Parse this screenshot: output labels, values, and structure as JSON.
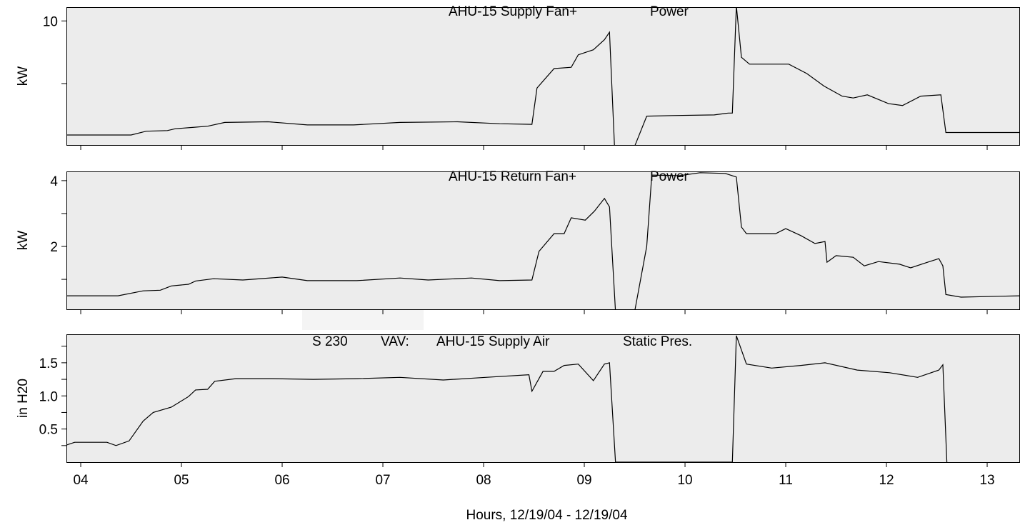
{
  "chart_data": [
    {
      "type": "line",
      "title_parts": [
        "AHU-15 Supply Fan+",
        "Power"
      ],
      "ylabel": "kW",
      "color": "#000000",
      "xlim": [
        3.858,
        13.326
      ],
      "ylim": [
        0.1,
        11.1
      ],
      "yticks": [
        10
      ],
      "minor_yticks": [
        5
      ],
      "xtick_marks": [
        4,
        5,
        6,
        7,
        8,
        9,
        10,
        11,
        12,
        13
      ],
      "x": [
        3.86,
        4.5,
        4.65,
        4.86,
        4.94,
        5.11,
        5.26,
        5.43,
        5.86,
        6.25,
        6.71,
        7.17,
        7.74,
        8.16,
        8.48,
        8.53,
        8.7,
        8.87,
        8.94,
        9.09,
        9.2,
        9.25,
        9.3,
        9.5,
        9.62,
        9.87,
        10.29,
        10.43,
        10.47,
        10.51,
        10.56,
        10.64,
        11.03,
        11.21,
        11.38,
        11.56,
        11.67,
        11.81,
        12.02,
        12.16,
        12.34,
        12.54,
        12.59,
        13.33
      ],
      "values": [
        0.9,
        0.9,
        1.2,
        1.25,
        1.4,
        1.5,
        1.6,
        1.9,
        1.95,
        1.7,
        1.7,
        1.9,
        1.95,
        1.8,
        1.75,
        4.65,
        6.2,
        6.3,
        7.3,
        7.7,
        8.5,
        9.1,
        0,
        0,
        2.4,
        2.45,
        2.5,
        2.65,
        2.65,
        11.2,
        7.1,
        6.55,
        6.55,
        5.8,
        4.8,
        4.0,
        3.85,
        4.1,
        3.4,
        3.25,
        4.0,
        4.1,
        1.1,
        1.1
      ]
    },
    {
      "type": "line",
      "title_parts": [
        "AHU-15 Return Fan+",
        "Power"
      ],
      "ylabel": "kW",
      "color": "#000000",
      "xlim": [
        3.858,
        13.326
      ],
      "ylim": [
        0.09,
        4.28
      ],
      "yticks": [
        2,
        4
      ],
      "minor_yticks": [
        1,
        3
      ],
      "xtick_marks": [
        4,
        5,
        6,
        7,
        8,
        9,
        10,
        11,
        12,
        13
      ],
      "x": [
        3.86,
        4.37,
        4.62,
        4.79,
        4.9,
        5.07,
        5.14,
        5.32,
        5.61,
        6.0,
        6.25,
        6.74,
        7.17,
        7.45,
        7.88,
        8.16,
        8.48,
        8.55,
        8.7,
        8.8,
        8.87,
        9.01,
        9.1,
        9.2,
        9.25,
        9.31,
        9.5,
        9.62,
        9.67,
        9.94,
        10.15,
        10.4,
        10.51,
        10.56,
        10.61,
        10.9,
        11.0,
        11.15,
        11.29,
        11.39,
        11.41,
        11.5,
        11.67,
        11.78,
        11.92,
        12.13,
        12.24,
        12.41,
        12.52,
        12.56,
        12.59,
        12.74,
        13.33
      ],
      "values": [
        0.5,
        0.5,
        0.65,
        0.67,
        0.8,
        0.85,
        0.95,
        1.02,
        0.98,
        1.07,
        0.96,
        0.96,
        1.04,
        0.98,
        1.04,
        0.96,
        0.98,
        1.85,
        2.39,
        2.39,
        2.87,
        2.8,
        3.07,
        3.46,
        3.2,
        0.02,
        0.02,
        2.0,
        4.17,
        4.15,
        4.24,
        4.22,
        4.11,
        2.59,
        2.39,
        2.39,
        2.54,
        2.33,
        2.09,
        2.15,
        1.52,
        1.72,
        1.67,
        1.41,
        1.54,
        1.46,
        1.35,
        1.52,
        1.63,
        1.41,
        0.54,
        0.46,
        0.5
      ]
    },
    {
      "type": "line",
      "title_parts": [
        "S 230",
        "VAV:",
        "AHU-15 Supply Air",
        "Static Pres."
      ],
      "ylabel": "in H20",
      "xlabel": "Hours, 12/19/04 - 12/19/04",
      "color": "#000000",
      "xlim": [
        3.858,
        13.326
      ],
      "ylim": [
        0,
        1.93
      ],
      "yticks": [
        {
          "value": 0.5,
          "label": "0.5"
        },
        {
          "value": 1,
          "label": "1.0"
        },
        {
          "value": 1.5,
          "label": "1.5"
        }
      ],
      "minor_yticks": [
        0.25,
        0.75,
        1.25,
        1.75
      ],
      "xticks": [
        {
          "value": 4,
          "label": "04"
        },
        {
          "value": 5,
          "label": "05"
        },
        {
          "value": 6,
          "label": "06"
        },
        {
          "value": 7,
          "label": "07"
        },
        {
          "value": 8,
          "label": "08"
        },
        {
          "value": 9,
          "label": "09"
        },
        {
          "value": 10,
          "label": "10"
        },
        {
          "value": 11,
          "label": "11"
        },
        {
          "value": 12,
          "label": "12"
        },
        {
          "value": 13,
          "label": "13"
        }
      ],
      "x": [
        3.86,
        3.94,
        4.26,
        4.35,
        4.48,
        4.62,
        4.72,
        4.9,
        5.07,
        5.14,
        5.26,
        5.33,
        5.54,
        5.89,
        6.31,
        6.74,
        7.17,
        7.6,
        8.02,
        8.45,
        8.48,
        8.59,
        8.7,
        8.8,
        8.94,
        9.09,
        9.2,
        9.25,
        9.31,
        10.47,
        10.51,
        10.61,
        10.86,
        11.15,
        11.39,
        11.71,
        12.03,
        12.31,
        12.52,
        12.56,
        12.6
      ],
      "values": [
        0.26,
        0.3,
        0.3,
        0.25,
        0.32,
        0.62,
        0.75,
        0.83,
        0.99,
        1.09,
        1.1,
        1.22,
        1.26,
        1.26,
        1.25,
        1.26,
        1.28,
        1.24,
        1.28,
        1.32,
        1.07,
        1.37,
        1.37,
        1.46,
        1.48,
        1.23,
        1.48,
        1.5,
        0,
        0,
        1.91,
        1.48,
        1.42,
        1.46,
        1.5,
        1.39,
        1.35,
        1.28,
        1.39,
        1.47,
        0
      ]
    }
  ]
}
